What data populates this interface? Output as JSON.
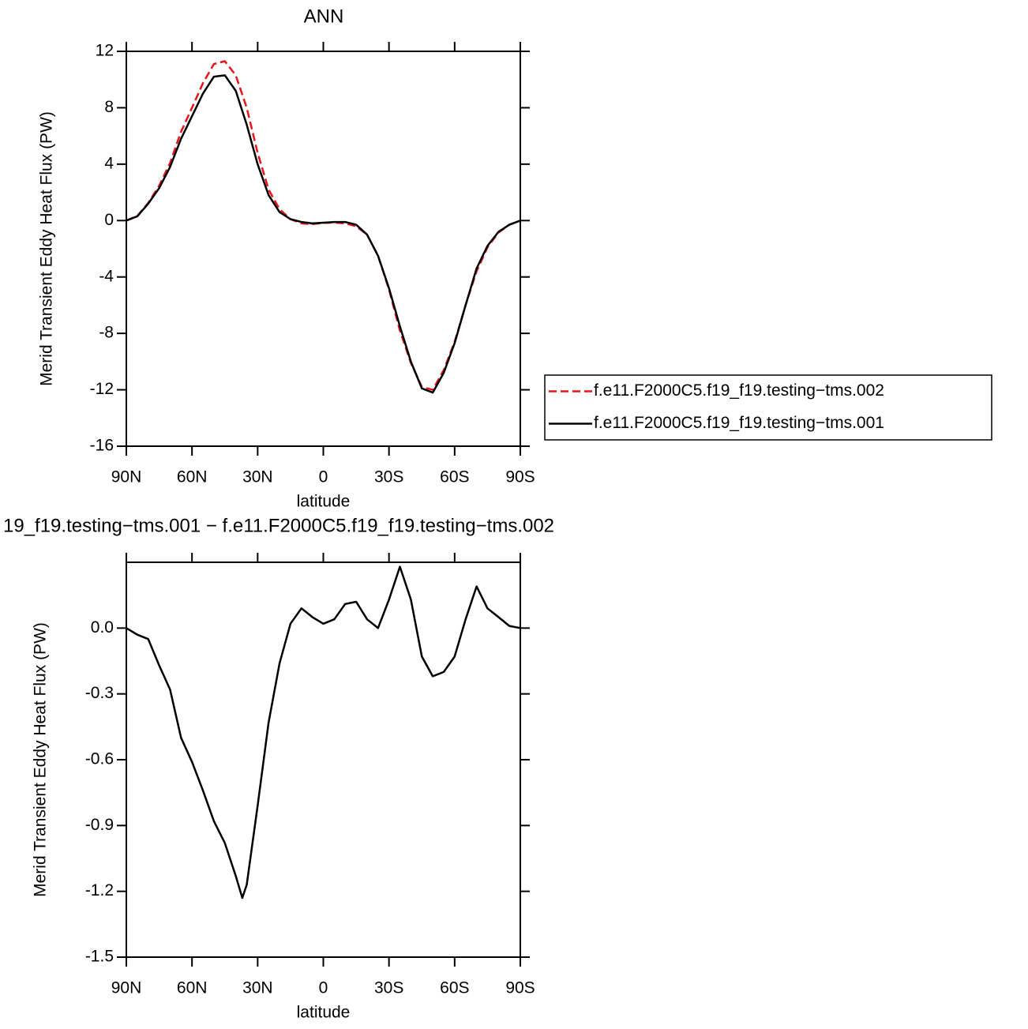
{
  "chart_data": [
    {
      "type": "line",
      "title": "ANN",
      "xlabel": "latitude",
      "ylabel": "Merid Transient Eddy Heat Flux (PW)",
      "x": [
        90,
        85,
        80,
        75,
        70,
        65,
        60,
        55,
        50,
        45,
        40,
        35,
        30,
        25,
        20,
        15,
        10,
        5,
        0,
        -5,
        -10,
        -15,
        -20,
        -25,
        -30,
        -35,
        -40,
        -45,
        -50,
        -55,
        -60,
        -65,
        -70,
        -75,
        -80,
        -85,
        -90
      ],
      "xlim": [
        90,
        -90
      ],
      "xticks": [
        {
          "value": 90,
          "label": "90N"
        },
        {
          "value": 60,
          "label": "60N"
        },
        {
          "value": 30,
          "label": "30N"
        },
        0,
        {
          "value": -30,
          "label": "30S"
        },
        {
          "value": -60,
          "label": "60S"
        },
        {
          "value": -90,
          "label": "90S"
        }
      ],
      "ylim": [
        -16,
        12
      ],
      "yticks": [
        -16,
        -12,
        -8,
        -4,
        0,
        4,
        8,
        12
      ],
      "legend": "right",
      "series": [
        {
          "name": "f.e11.F2000C5.f19_f19.testing−tms.002",
          "color": "#e8141a",
          "linestyle": "dashed",
          "values": [
            0,
            0.33,
            1.25,
            2.47,
            4.08,
            6.3,
            8.0,
            9.74,
            11.1,
            11.3,
            10.3,
            8.0,
            4.8,
            2.2,
            0.8,
            0.1,
            -0.2,
            -0.25,
            -0.17,
            -0.14,
            -0.2,
            -0.4,
            -1.0,
            -2.5,
            -4.9,
            -7.8,
            -10.1,
            -11.8,
            -12.0,
            -10.6,
            -8.6,
            -6.0,
            -3.6,
            -1.9,
            -0.85,
            -0.3,
            0
          ]
        },
        {
          "name": "f.e11.F2000C5.f19_f19.testing−tms.001",
          "color": "#000000",
          "linestyle": "solid",
          "values": [
            0,
            0.3,
            1.2,
            2.3,
            3.8,
            5.8,
            7.4,
            9.0,
            10.2,
            10.3,
            9.2,
            6.8,
            4.0,
            1.8,
            0.6,
            0.1,
            -0.1,
            -0.2,
            -0.15,
            -0.1,
            -0.1,
            -0.3,
            -1.0,
            -2.5,
            -4.8,
            -7.5,
            -10.0,
            -11.9,
            -12.2,
            -10.8,
            -8.7,
            -6.0,
            -3.4,
            -1.8,
            -0.8,
            -0.3,
            0
          ]
        }
      ]
    },
    {
      "type": "line",
      "title": "19_f19.testing−tms.001 − f.e11.F2000C5.f19_f19.testing−tms.002",
      "xlabel": "latitude",
      "ylabel": "Merid Transient Eddy Heat Flux (PW)",
      "x": [
        90,
        85,
        80,
        75,
        70,
        65,
        60,
        55,
        50,
        45,
        40,
        37,
        35,
        30,
        25,
        20,
        15,
        10,
        5,
        0,
        -5,
        -10,
        -15,
        -20,
        -25,
        -30,
        -35,
        -40,
        -45,
        -50,
        -55,
        -60,
        -65,
        -70,
        -75,
        -80,
        -85,
        -90
      ],
      "xlim": [
        90,
        -90
      ],
      "xticks": [
        {
          "value": 90,
          "label": "90N"
        },
        {
          "value": 60,
          "label": "60N"
        },
        {
          "value": 30,
          "label": "30N"
        },
        0,
        {
          "value": -30,
          "label": "30S"
        },
        {
          "value": -60,
          "label": "60S"
        },
        {
          "value": -90,
          "label": "90S"
        }
      ],
      "ylim": [
        -1.5,
        0.3
      ],
      "yticks": [
        -1.5,
        -1.2,
        -0.9,
        -0.6,
        -0.3,
        {
          "value": 0,
          "label": "0.0"
        }
      ],
      "series": [
        {
          "color": "#000000",
          "linestyle": "solid",
          "values": [
            0,
            -0.03,
            -0.05,
            -0.17,
            -0.28,
            -0.5,
            -0.61,
            -0.74,
            -0.88,
            -0.98,
            -1.13,
            -1.23,
            -1.17,
            -0.81,
            -0.43,
            -0.16,
            0.02,
            0.09,
            0.05,
            0.02,
            0.04,
            0.11,
            0.12,
            0.04,
            0,
            0.13,
            0.28,
            0.13,
            -0.13,
            -0.22,
            -0.2,
            -0.13,
            0.04,
            0.19,
            0.09,
            0.05,
            0.01,
            0
          ]
        }
      ]
    }
  ]
}
